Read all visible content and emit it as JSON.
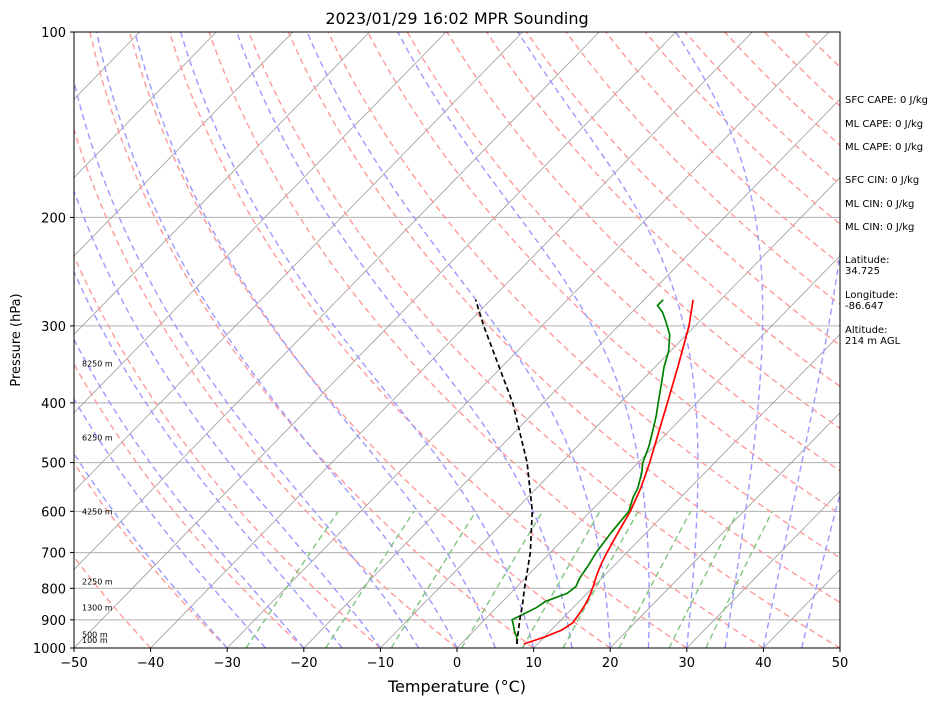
{
  "chart_data": {
    "type": "line",
    "chart_kind": "skew-t log-p",
    "title": "2023/01/29 16:02 MPR Sounding",
    "xlabel": "Temperature (°C)",
    "ylabel": "Pressure (hPa)",
    "xlim": [
      -50,
      50
    ],
    "ylim": [
      1000,
      100
    ],
    "y_scale": "log",
    "grid": true,
    "x_ticks": [
      "−50",
      "−40",
      "−30",
      "−20",
      "−10",
      "0",
      "10",
      "20",
      "30",
      "40",
      "50"
    ],
    "y_ticks": [
      "100",
      "200",
      "300",
      "400",
      "500",
      "600",
      "700",
      "800",
      "900",
      "1000"
    ],
    "height_labels": [
      {
        "p": 970,
        "label": "100 m"
      },
      {
        "p": 950,
        "label": "500 m"
      },
      {
        "p": 860,
        "label": "1300 m"
      },
      {
        "p": 780,
        "label": "2250 m"
      },
      {
        "p": 600,
        "label": "4250 m"
      },
      {
        "p": 455,
        "label": "6250 m"
      },
      {
        "p": 345,
        "label": "8250 m"
      }
    ],
    "series": [
      {
        "kind": "temperature",
        "color": "#ff0000",
        "points": [
          [
            985,
            8.2
          ],
          [
            960,
            10.0
          ],
          [
            935,
            11.4
          ],
          [
            910,
            11.9
          ],
          [
            880,
            11.6
          ],
          [
            850,
            11.2
          ],
          [
            820,
            10.6
          ],
          [
            790,
            9.8
          ],
          [
            760,
            8.9
          ],
          [
            730,
            8.1
          ],
          [
            700,
            7.4
          ],
          [
            650,
            6.3
          ],
          [
            600,
            5.2
          ],
          [
            550,
            3.6
          ],
          [
            500,
            1.5
          ],
          [
            450,
            -1.0
          ],
          [
            400,
            -3.8
          ],
          [
            350,
            -7.0
          ],
          [
            300,
            -10.8
          ],
          [
            272,
            -13.6
          ]
        ]
      },
      {
        "kind": "dewpoint",
        "color": "#008000",
        "points": [
          [
            985,
            7.3
          ],
          [
            960,
            6.4
          ],
          [
            940,
            5.4
          ],
          [
            915,
            4.3
          ],
          [
            900,
            3.6
          ],
          [
            880,
            4.4
          ],
          [
            860,
            5.2
          ],
          [
            840,
            5.6
          ],
          [
            815,
            7.4
          ],
          [
            795,
            7.7
          ],
          [
            770,
            7.1
          ],
          [
            740,
            6.7
          ],
          [
            700,
            6.0
          ],
          [
            650,
            5.4
          ],
          [
            600,
            5.0
          ],
          [
            570,
            3.8
          ],
          [
            550,
            3.2
          ],
          [
            520,
            1.8
          ],
          [
            500,
            0.6
          ],
          [
            470,
            -0.7
          ],
          [
            450,
            -1.8
          ],
          [
            420,
            -3.6
          ],
          [
            400,
            -5.0
          ],
          [
            370,
            -7.2
          ],
          [
            350,
            -8.8
          ],
          [
            330,
            -10.2
          ],
          [
            310,
            -12.2
          ],
          [
            295,
            -14.4
          ],
          [
            285,
            -16.0
          ],
          [
            278,
            -17.5
          ],
          [
            272,
            -17.5
          ]
        ]
      },
      {
        "kind": "parcel",
        "color": "#000000",
        "points": [
          [
            985,
            7.3
          ],
          [
            950,
            6.2
          ],
          [
            900,
            4.6
          ],
          [
            850,
            3.0
          ],
          [
            800,
            1.2
          ],
          [
            700,
            -2.6
          ],
          [
            600,
            -7.6
          ],
          [
            500,
            -14.5
          ],
          [
            400,
            -24.0
          ],
          [
            300,
            -37.6
          ],
          [
            272,
            -42.0
          ]
        ]
      }
    ]
  },
  "info": {
    "sfc_cape": "SFC CAPE: 0 J/kg",
    "ml_cape_1": "ML CAPE: 0 J/kg",
    "ml_cape_2": "ML CAPE: 0 J/kg",
    "sfc_cin": "SFC CIN: 0 J/kg",
    "ml_cin_1": "ML CIN: 0 J/kg",
    "ml_cin_2": "ML CIN: 0 J/kg",
    "latitude_label": "Latitude:",
    "latitude_value": "34.725",
    "longitude_label": "Longitude:",
    "longitude_value": "-86.647",
    "altitude_label": "Altitude:",
    "altitude_value": "214 m AGL"
  },
  "colors": {
    "dry_adiabat": "#ff9a9a",
    "moist_adiabat": "#9a9aff",
    "mixing_ratio": "#7fc47f",
    "isotherm": "#9a9a9a",
    "isobar": "#b0b0b0"
  }
}
